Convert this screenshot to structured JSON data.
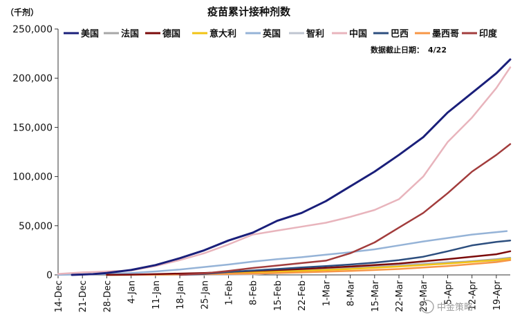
{
  "chart_data": {
    "type": "line",
    "title": "疫苗累计接种剂数",
    "unit_label": "（千剂）",
    "note_label": "数据截止日期：",
    "note_value": "4/22",
    "watermark": "中金策略",
    "x_tick_labels": [
      "14-Dec",
      "21-Dec",
      "28-Dec",
      "4-Jan",
      "11-Jan",
      "18-Jan",
      "25-Jan",
      "1-Feb",
      "8-Feb",
      "15-Feb",
      "22-Feb",
      "1-Mar",
      "8-Mar",
      "15-Mar",
      "22-Mar",
      "29-Mar",
      "5-Apr",
      "12-Apr",
      "19-Apr"
    ],
    "x_range_days": [
      0,
      130
    ],
    "ylim": [
      0,
      250000
    ],
    "y_ticks": [
      "0",
      "50,000",
      "100,000",
      "150,000",
      "200,000",
      "250,000"
    ],
    "y_tick_values": [
      0,
      50000,
      100000,
      150000,
      200000,
      250000
    ],
    "grid": false,
    "legend_position": "top",
    "series": [
      {
        "name": "美国",
        "color": "#1a1f7a",
        "width": 3,
        "points": [
          [
            4,
            0
          ],
          [
            10,
            800
          ],
          [
            14,
            2000
          ],
          [
            21,
            5000
          ],
          [
            28,
            10000
          ],
          [
            35,
            17000
          ],
          [
            42,
            25000
          ],
          [
            49,
            35000
          ],
          [
            56,
            43000
          ],
          [
            63,
            55000
          ],
          [
            70,
            63000
          ],
          [
            77,
            75000
          ],
          [
            84,
            90000
          ],
          [
            91,
            105000
          ],
          [
            98,
            122000
          ],
          [
            105,
            140000
          ],
          [
            112,
            165000
          ],
          [
            119,
            185000
          ],
          [
            126,
            205000
          ],
          [
            130,
            219000
          ]
        ]
      },
      {
        "name": "法国",
        "color": "#a6a6a6",
        "width": 2.5,
        "points": [
          [
            14,
            0
          ],
          [
            28,
            200
          ],
          [
            42,
            1000
          ],
          [
            56,
            2500
          ],
          [
            70,
            4500
          ],
          [
            84,
            6500
          ],
          [
            98,
            9000
          ],
          [
            112,
            12000
          ],
          [
            126,
            16000
          ],
          [
            130,
            17500
          ]
        ]
      },
      {
        "name": "德国",
        "color": "#7b0a0a",
        "width": 2.5,
        "points": [
          [
            14,
            0
          ],
          [
            21,
            300
          ],
          [
            28,
            800
          ],
          [
            42,
            2000
          ],
          [
            56,
            4000
          ],
          [
            70,
            6000
          ],
          [
            84,
            8500
          ],
          [
            98,
            11500
          ],
          [
            112,
            16000
          ],
          [
            126,
            21000
          ],
          [
            130,
            24000
          ]
        ]
      },
      {
        "name": "意大利",
        "color": "#f2c314",
        "width": 2.5,
        "points": [
          [
            14,
            0
          ],
          [
            28,
            300
          ],
          [
            42,
            1000
          ],
          [
            56,
            2500
          ],
          [
            70,
            4000
          ],
          [
            84,
            6000
          ],
          [
            98,
            8500
          ],
          [
            112,
            11500
          ],
          [
            126,
            15000
          ],
          [
            130,
            16500
          ]
        ]
      },
      {
        "name": "英国",
        "color": "#95b3d7",
        "width": 2.5,
        "points": [
          [
            0,
            0
          ],
          [
            7,
            500
          ],
          [
            14,
            1000
          ],
          [
            21,
            2000
          ],
          [
            28,
            3500
          ],
          [
            35,
            5500
          ],
          [
            42,
            8000
          ],
          [
            49,
            10500
          ],
          [
            56,
            13500
          ],
          [
            63,
            16000
          ],
          [
            70,
            18000
          ],
          [
            77,
            20500
          ],
          [
            84,
            23000
          ],
          [
            91,
            26000
          ],
          [
            98,
            30000
          ],
          [
            105,
            34000
          ],
          [
            112,
            37500
          ],
          [
            119,
            41000
          ],
          [
            126,
            43500
          ],
          [
            129,
            44500
          ]
        ]
      },
      {
        "name": "智利",
        "color": "#bfc5d1",
        "width": 2.5,
        "points": [
          [
            28,
            0
          ],
          [
            35,
            100
          ],
          [
            49,
            200
          ],
          [
            56,
            500
          ],
          [
            63,
            2000
          ],
          [
            70,
            4000
          ],
          [
            77,
            6000
          ],
          [
            84,
            7500
          ],
          [
            91,
            8500
          ],
          [
            98,
            10000
          ],
          [
            105,
            11500
          ],
          [
            112,
            13000
          ],
          [
            126,
            14500
          ],
          [
            130,
            15000
          ]
        ]
      },
      {
        "name": "中国",
        "color": "#e8b4bc",
        "width": 2.5,
        "points": [
          [
            0,
            1000
          ],
          [
            7,
            2500
          ],
          [
            14,
            3500
          ],
          [
            21,
            4500
          ],
          [
            28,
            9000
          ],
          [
            35,
            15000
          ],
          [
            42,
            22000
          ],
          [
            49,
            31000
          ],
          [
            56,
            41000
          ],
          [
            63,
            45000
          ],
          [
            70,
            49000
          ],
          [
            77,
            53000
          ],
          [
            84,
            59000
          ],
          [
            91,
            66000
          ],
          [
            98,
            77000
          ],
          [
            105,
            100000
          ],
          [
            112,
            135000
          ],
          [
            119,
            160000
          ],
          [
            126,
            190000
          ],
          [
            130,
            211000
          ]
        ]
      },
      {
        "name": "巴西",
        "color": "#2c4e7e",
        "width": 2.5,
        "points": [
          [
            35,
            0
          ],
          [
            42,
            1000
          ],
          [
            49,
            3000
          ],
          [
            56,
            4500
          ],
          [
            63,
            6000
          ],
          [
            70,
            7500
          ],
          [
            77,
            9000
          ],
          [
            84,
            10500
          ],
          [
            91,
            12500
          ],
          [
            98,
            15000
          ],
          [
            105,
            18500
          ],
          [
            112,
            24000
          ],
          [
            119,
            30000
          ],
          [
            126,
            33500
          ],
          [
            130,
            35000
          ]
        ]
      },
      {
        "name": "墨西哥",
        "color": "#f79646",
        "width": 2.5,
        "points": [
          [
            14,
            0
          ],
          [
            28,
            300
          ],
          [
            42,
            700
          ],
          [
            56,
            1200
          ],
          [
            70,
            2500
          ],
          [
            84,
            4000
          ],
          [
            98,
            6000
          ],
          [
            112,
            9000
          ],
          [
            126,
            13000
          ],
          [
            130,
            15000
          ]
        ]
      },
      {
        "name": "印度",
        "color": "#a23c3c",
        "width": 2.5,
        "points": [
          [
            35,
            0
          ],
          [
            42,
            1500
          ],
          [
            49,
            4000
          ],
          [
            56,
            7000
          ],
          [
            63,
            9500
          ],
          [
            70,
            12000
          ],
          [
            77,
            14500
          ],
          [
            84,
            22000
          ],
          [
            91,
            33000
          ],
          [
            98,
            48000
          ],
          [
            105,
            63000
          ],
          [
            112,
            83000
          ],
          [
            119,
            105000
          ],
          [
            126,
            122000
          ],
          [
            130,
            133000
          ]
        ]
      }
    ]
  }
}
